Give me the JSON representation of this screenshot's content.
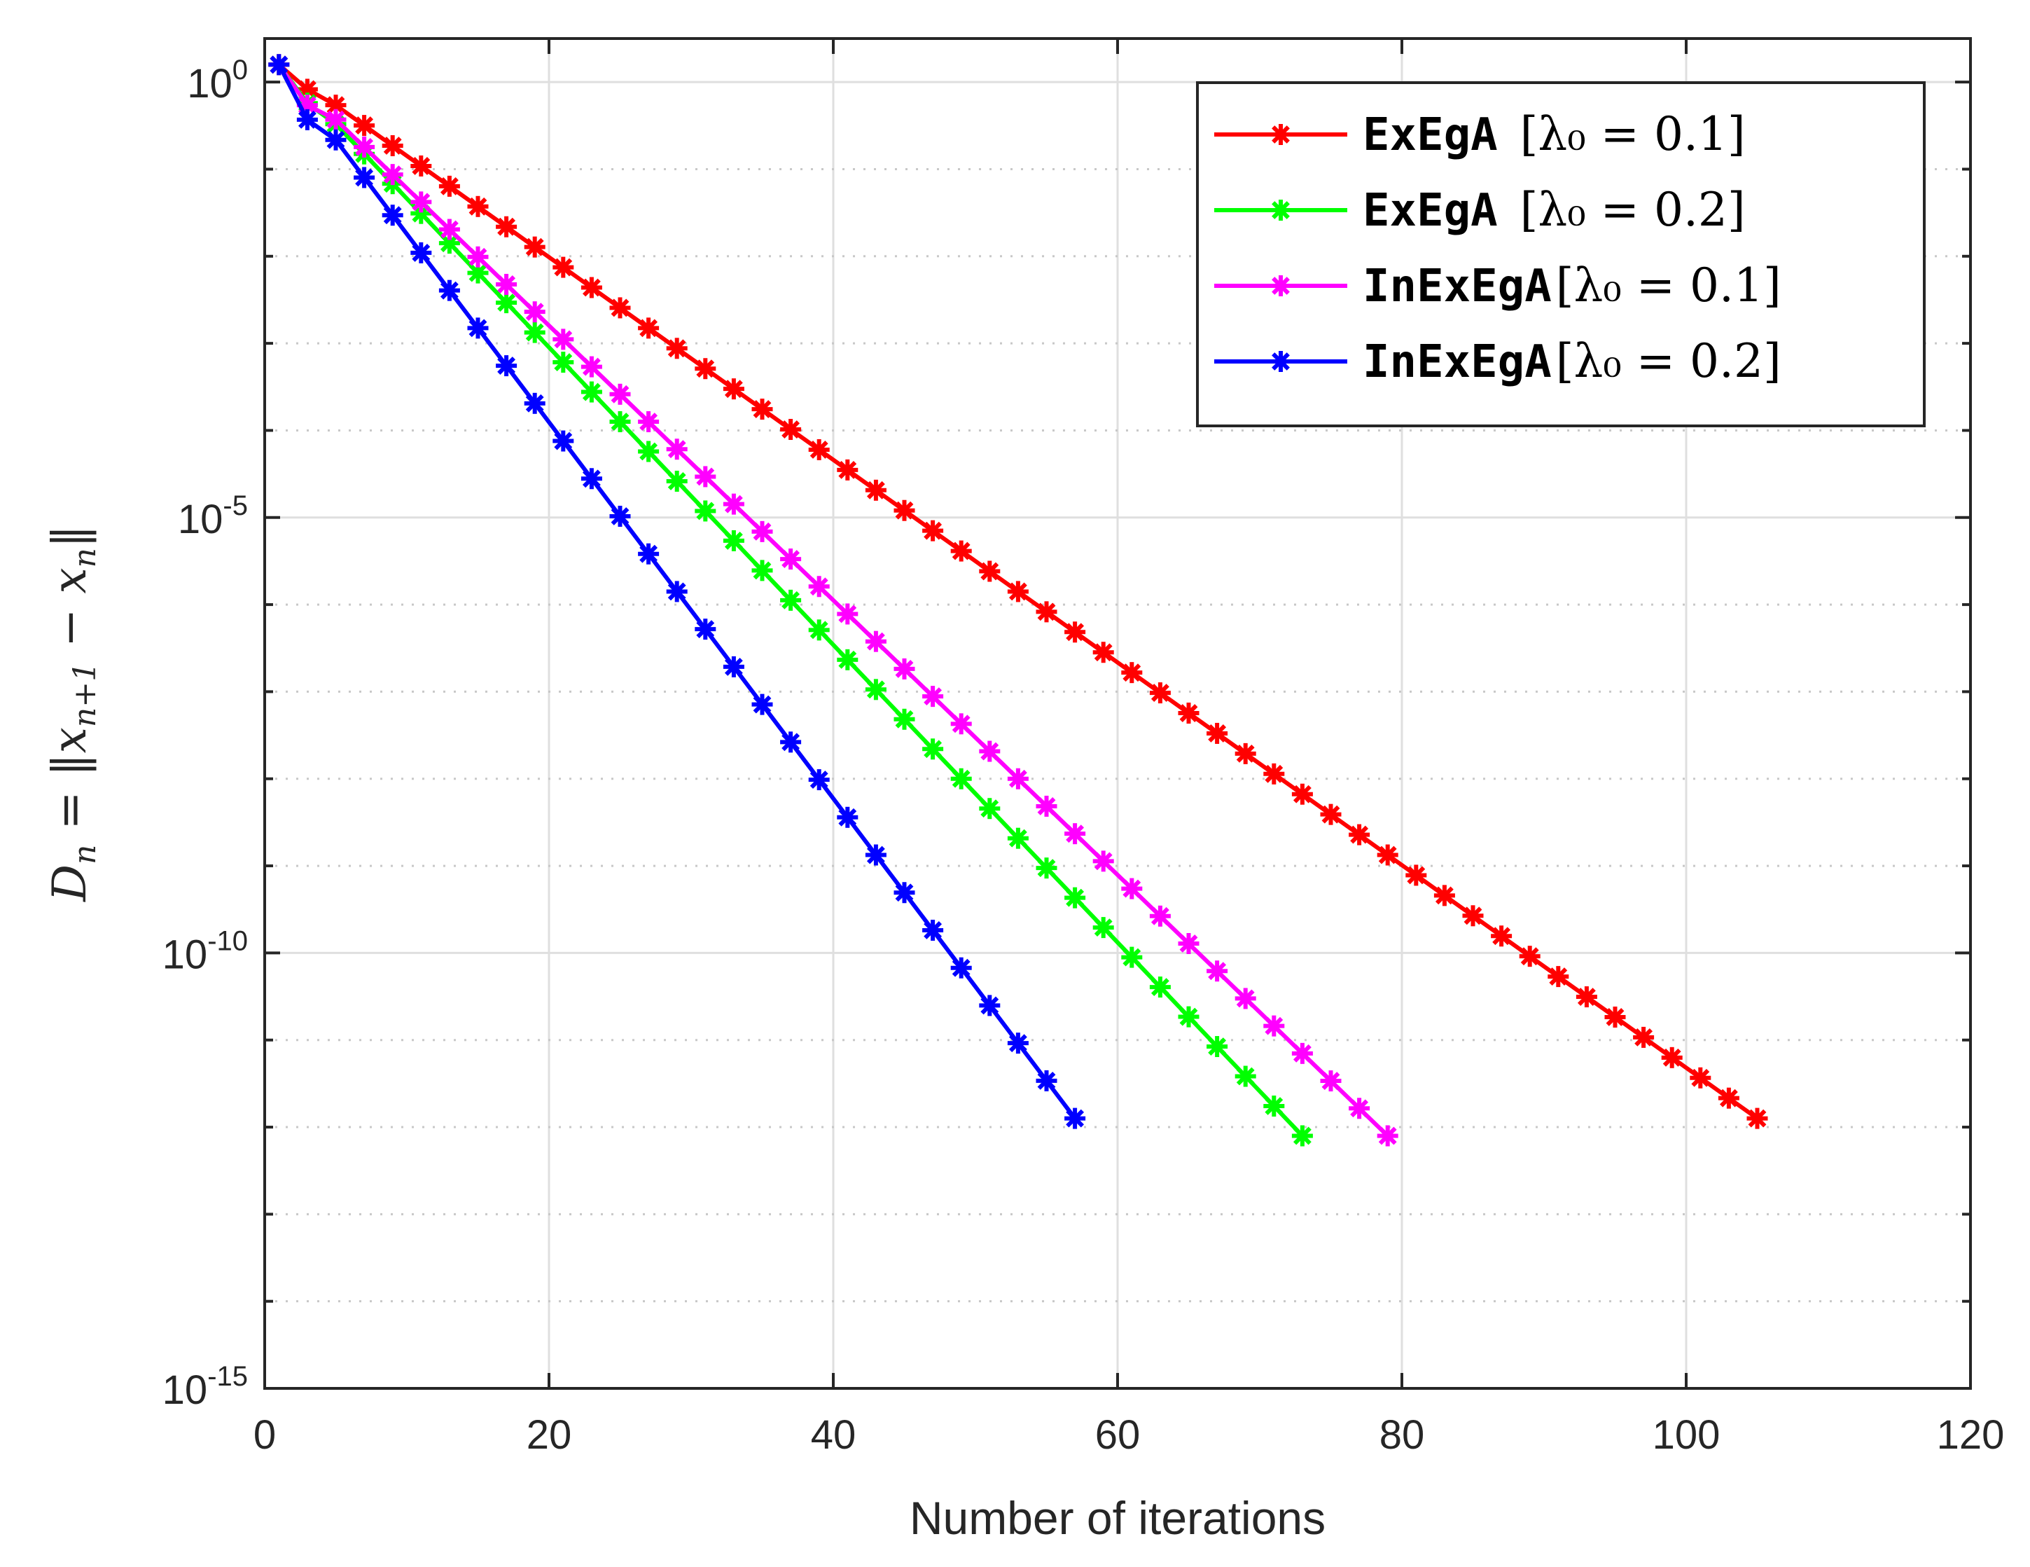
{
  "chart_data": {
    "type": "line",
    "xlabel": "Number of iterations",
    "ylabel": "D_n = ||x_{n+1} − x_n||",
    "xlim": [
      0,
      120
    ],
    "ylim_log10": [
      -15,
      0.5
    ],
    "yscale": "log",
    "grid": true,
    "legend_position": "top-right",
    "x_ticks": [
      "0",
      "20",
      "40",
      "60",
      "80",
      "100",
      "120"
    ],
    "y_ticks": [
      {
        "base": "10",
        "exp": "0",
        "value": 0
      },
      {
        "base": "10",
        "exp": "-5",
        "value": -5
      },
      {
        "base": "10",
        "exp": "-10",
        "value": -10
      },
      {
        "base": "10",
        "exp": "-15",
        "value": -15
      }
    ],
    "series": [
      {
        "name": "ExEgA",
        "param": "[λ₀ = 0.1]",
        "color": "#ff0000",
        "x_start": 1,
        "x_step": 2,
        "x_end": 105,
        "log10_start": 0.2,
        "log10_end": -11.9
      },
      {
        "name": "ExEgA",
        "param": "[λ₀ = 0.2]",
        "color": "#00ff00",
        "x_start": 1,
        "x_step": 2,
        "x_end": 73,
        "log10_start": 0.2,
        "log10_end": -12.1
      },
      {
        "name": "InExEgA",
        "param": "[λ₀ = 0.1]",
        "color": "#ff00ff",
        "x_start": 1,
        "x_step": 2,
        "x_end": 79,
        "log10_start": 0.2,
        "log10_end": -12.1
      },
      {
        "name": "InExEgA",
        "param": "[λ₀ = 0.2]",
        "color": "#0000ff",
        "x_start": 1,
        "x_step": 2,
        "x_end": 57,
        "log10_start": 0.2,
        "log10_end": -11.9
      }
    ]
  }
}
